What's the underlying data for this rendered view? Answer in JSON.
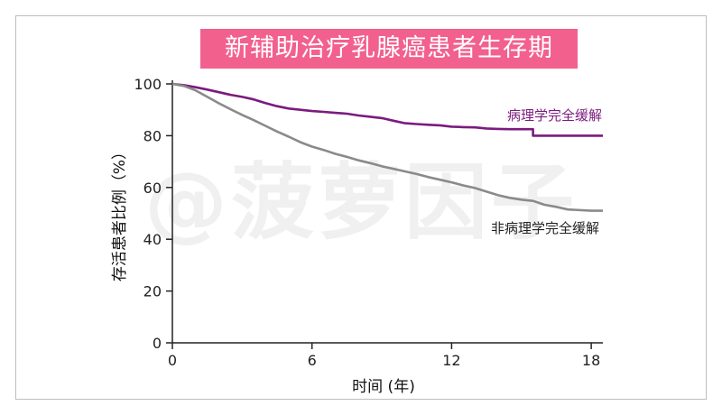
{
  "chart_data": {
    "type": "line",
    "title": "新辅助治疗乳腺癌患者生存期",
    "watermark": "@菠萝因子",
    "xlabel": "时间 (年)",
    "ylabel": "存活患者比例（%）",
    "xlim": [
      0,
      18.5
    ],
    "ylim": [
      0,
      100
    ],
    "xticks": [
      0,
      6,
      12,
      18
    ],
    "yticks": [
      0,
      20,
      40,
      60,
      80,
      100
    ],
    "grid": false,
    "series": [
      {
        "name": "病理学完全缓解",
        "color": "#7b1a7e",
        "points": [
          [
            0,
            100
          ],
          [
            0.5,
            99.5
          ],
          [
            1,
            98.7
          ],
          [
            1.5,
            97.8
          ],
          [
            2,
            96.8
          ],
          [
            2.5,
            95.8
          ],
          [
            3,
            95
          ],
          [
            3.5,
            94
          ],
          [
            4,
            92.6
          ],
          [
            4.5,
            91.4
          ],
          [
            5,
            90.5
          ],
          [
            5.5,
            90
          ],
          [
            6,
            89.5
          ],
          [
            6.5,
            89.2
          ],
          [
            7,
            88.8
          ],
          [
            7.5,
            88.5
          ],
          [
            8,
            87.8
          ],
          [
            8.5,
            87.3
          ],
          [
            9,
            86.8
          ],
          [
            9.5,
            85.8
          ],
          [
            10,
            84.8
          ],
          [
            10.5,
            84.5
          ],
          [
            11,
            84.2
          ],
          [
            11.5,
            84
          ],
          [
            12,
            83.5
          ],
          [
            12.5,
            83.3
          ],
          [
            13,
            83.2
          ],
          [
            13.5,
            82.8
          ],
          [
            14,
            82.6
          ],
          [
            14.5,
            82.5
          ],
          [
            15,
            82.5
          ],
          [
            15.5,
            82.5
          ],
          [
            15.5,
            80
          ],
          [
            16,
            80
          ],
          [
            17,
            80
          ],
          [
            18,
            80
          ],
          [
            18.5,
            80
          ]
        ]
      },
      {
        "name": "非病理学完全缓解",
        "color": "#8a8a8a",
        "points": [
          [
            0,
            100
          ],
          [
            0.5,
            99.2
          ],
          [
            1,
            97.5
          ],
          [
            1.5,
            95
          ],
          [
            2,
            92.5
          ],
          [
            2.5,
            90.2
          ],
          [
            3,
            88
          ],
          [
            3.5,
            86
          ],
          [
            4,
            83.8
          ],
          [
            4.5,
            81.6
          ],
          [
            5,
            79.6
          ],
          [
            5.5,
            77.5
          ],
          [
            6,
            75.8
          ],
          [
            6.5,
            74.5
          ],
          [
            7,
            73
          ],
          [
            7.5,
            71.8
          ],
          [
            8,
            70.5
          ],
          [
            8.5,
            69.4
          ],
          [
            9,
            68.2
          ],
          [
            9.5,
            67.2
          ],
          [
            10,
            66.2
          ],
          [
            10.5,
            65.2
          ],
          [
            11,
            64
          ],
          [
            11.5,
            63
          ],
          [
            12,
            62
          ],
          [
            12.5,
            60.8
          ],
          [
            13,
            59.8
          ],
          [
            13.5,
            58.4
          ],
          [
            14,
            57
          ],
          [
            14.5,
            56
          ],
          [
            15,
            55.3
          ],
          [
            15.5,
            54.8
          ],
          [
            16,
            53.3
          ],
          [
            16.5,
            52.5
          ],
          [
            17,
            51.5
          ],
          [
            18,
            51
          ],
          [
            18.5,
            51
          ]
        ]
      }
    ],
    "series_labels": [
      {
        "text": "病理学完全缓解",
        "color": "#7b1a7e"
      },
      {
        "text": "非病理学完全缓解",
        "color": "#222222"
      }
    ]
  }
}
